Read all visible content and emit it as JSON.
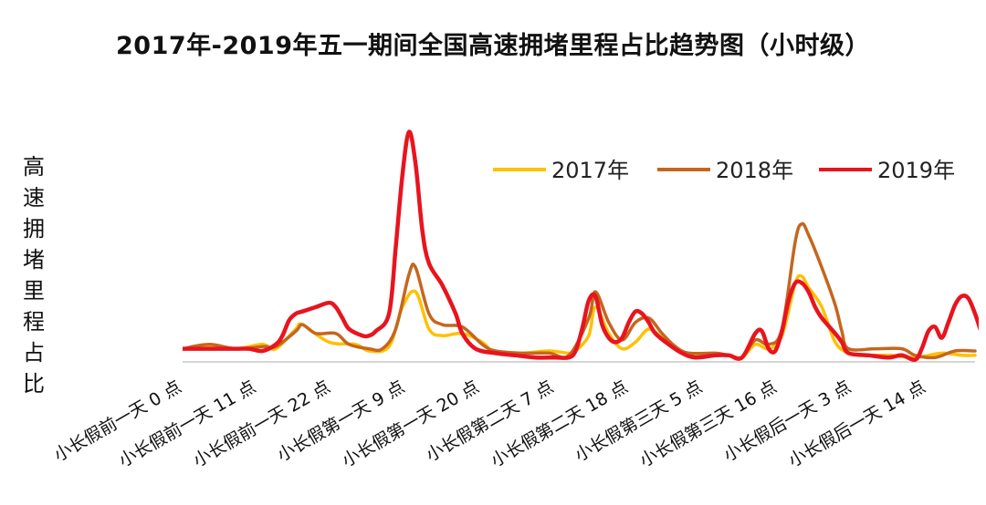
{
  "chart_data": {
    "type": "line",
    "title": "2017年-2019年五一期间全国高速拥堵里程占比趋势图（小时级）",
    "ylabel": "高速拥堵里程占比",
    "xlabel": "",
    "tick_labels": [
      "小长假前一天 0 点",
      "小长假前一天 11 点",
      "小长假前一天 22 点",
      "小长假第一天 9 点",
      "小长假第一天 20 点",
      "小长假第二天 7 点",
      "小长假第二天 18 点",
      "小长假第三天 5 点",
      "小长假第三天 16 点",
      "小长假后一天 3 点",
      "小长假后一天 14 点"
    ],
    "x_range": [
      0,
      119
    ],
    "ylim": [
      0,
      100
    ],
    "legend_position": "top-right",
    "grid": false,
    "series": [
      {
        "name": "2017年",
        "color": "#FFC000",
        "points": [
          [
            0,
            6
          ],
          [
            4,
            7
          ],
          [
            8,
            6
          ],
          [
            12,
            8
          ],
          [
            14,
            6
          ],
          [
            17,
            15
          ],
          [
            18,
            17
          ],
          [
            22,
            9
          ],
          [
            26,
            8
          ],
          [
            28,
            5
          ],
          [
            31,
            7
          ],
          [
            33,
            25
          ],
          [
            35,
            32
          ],
          [
            37,
            15
          ],
          [
            39,
            12
          ],
          [
            42,
            13
          ],
          [
            45,
            9
          ],
          [
            47,
            4
          ],
          [
            51,
            4
          ],
          [
            55,
            5
          ],
          [
            58,
            4
          ],
          [
            59,
            5
          ],
          [
            61,
            12
          ],
          [
            62,
            25
          ],
          [
            64,
            13
          ],
          [
            66,
            6
          ],
          [
            68,
            9
          ],
          [
            70,
            15
          ],
          [
            72,
            11
          ],
          [
            74,
            6
          ],
          [
            76,
            3
          ],
          [
            80,
            3
          ],
          [
            82,
            3
          ],
          [
            84,
            2
          ],
          [
            86,
            8
          ],
          [
            88,
            6
          ],
          [
            90,
            12
          ],
          [
            92,
            36
          ],
          [
            93,
            39
          ],
          [
            94,
            34
          ],
          [
            96,
            25
          ],
          [
            98,
            9
          ],
          [
            100,
            4
          ],
          [
            102,
            3
          ],
          [
            106,
            3
          ],
          [
            110,
            2
          ],
          [
            114,
            4
          ],
          [
            117,
            3
          ],
          [
            119,
            3
          ]
        ]
      },
      {
        "name": "2018年",
        "color": "#C5661E",
        "points": [
          [
            0,
            6
          ],
          [
            4,
            8
          ],
          [
            8,
            6
          ],
          [
            12,
            7
          ],
          [
            14,
            7
          ],
          [
            17,
            14
          ],
          [
            18,
            17
          ],
          [
            20,
            13
          ],
          [
            23,
            13
          ],
          [
            25,
            8
          ],
          [
            28,
            6
          ],
          [
            30,
            6
          ],
          [
            32,
            15
          ],
          [
            34,
            40
          ],
          [
            35,
            43
          ],
          [
            37,
            22
          ],
          [
            39,
            17
          ],
          [
            42,
            16
          ],
          [
            45,
            8
          ],
          [
            47,
            5
          ],
          [
            51,
            4
          ],
          [
            55,
            4
          ],
          [
            58,
            3
          ],
          [
            61,
            20
          ],
          [
            62,
            32
          ],
          [
            64,
            18
          ],
          [
            66,
            10
          ],
          [
            68,
            18
          ],
          [
            70,
            20
          ],
          [
            72,
            13
          ],
          [
            74,
            7
          ],
          [
            76,
            4
          ],
          [
            80,
            4
          ],
          [
            82,
            3
          ],
          [
            84,
            2
          ],
          [
            86,
            10
          ],
          [
            88,
            8
          ],
          [
            90,
            15
          ],
          [
            92,
            55
          ],
          [
            93,
            63
          ],
          [
            94,
            58
          ],
          [
            96,
            43
          ],
          [
            98,
            26
          ],
          [
            99,
            14
          ],
          [
            100,
            6
          ],
          [
            104,
            6
          ],
          [
            108,
            6
          ],
          [
            110,
            3
          ],
          [
            113,
            2
          ],
          [
            116,
            5
          ],
          [
            119,
            5
          ]
        ]
      },
      {
        "name": "2019年",
        "color": "#E8141E",
        "points": [
          [
            0,
            6
          ],
          [
            4,
            6
          ],
          [
            8,
            6
          ],
          [
            10,
            6
          ],
          [
            12,
            5
          ],
          [
            14,
            8
          ],
          [
            15,
            12
          ],
          [
            16,
            19
          ],
          [
            17,
            22
          ],
          [
            18,
            23
          ],
          [
            20,
            25
          ],
          [
            22,
            27
          ],
          [
            23,
            25
          ],
          [
            24,
            20
          ],
          [
            25,
            15
          ],
          [
            27,
            12
          ],
          [
            28,
            12
          ],
          [
            29,
            14
          ],
          [
            31,
            22
          ],
          [
            32,
            52
          ],
          [
            33,
            85
          ],
          [
            34,
            105
          ],
          [
            35,
            90
          ],
          [
            36,
            60
          ],
          [
            37,
            45
          ],
          [
            39,
            35
          ],
          [
            41,
            22
          ],
          [
            42,
            13
          ],
          [
            44,
            6
          ],
          [
            47,
            4
          ],
          [
            50,
            3
          ],
          [
            53,
            2
          ],
          [
            56,
            2
          ],
          [
            58,
            2
          ],
          [
            59,
            5
          ],
          [
            60,
            15
          ],
          [
            61,
            28
          ],
          [
            62,
            30
          ],
          [
            63,
            17
          ],
          [
            64,
            11
          ],
          [
            65,
            9
          ],
          [
            66,
            11
          ],
          [
            67,
            18
          ],
          [
            68,
            23
          ],
          [
            69,
            22
          ],
          [
            70,
            18
          ],
          [
            71,
            13
          ],
          [
            73,
            8
          ],
          [
            75,
            4
          ],
          [
            77,
            2
          ],
          [
            80,
            3
          ],
          [
            82,
            3
          ],
          [
            84,
            2
          ],
          [
            86,
            13
          ],
          [
            87,
            14
          ],
          [
            88,
            6
          ],
          [
            89,
            5
          ],
          [
            90,
            14
          ],
          [
            91,
            28
          ],
          [
            92,
            36
          ],
          [
            93,
            36
          ],
          [
            94,
            32
          ],
          [
            95,
            25
          ],
          [
            96,
            20
          ],
          [
            98,
            13
          ],
          [
            99,
            9
          ],
          [
            100,
            4
          ],
          [
            103,
            3
          ],
          [
            106,
            2
          ],
          [
            108,
            3
          ],
          [
            110,
            1
          ],
          [
            111,
            6
          ],
          [
            112,
            14
          ],
          [
            113,
            16
          ],
          [
            114,
            11
          ],
          [
            115,
            18
          ],
          [
            116,
            26
          ],
          [
            117,
            30
          ],
          [
            118,
            29
          ],
          [
            119,
            22
          ],
          [
            120,
            13
          ],
          [
            121,
            5
          ],
          [
            123,
            4
          ]
        ]
      }
    ]
  }
}
